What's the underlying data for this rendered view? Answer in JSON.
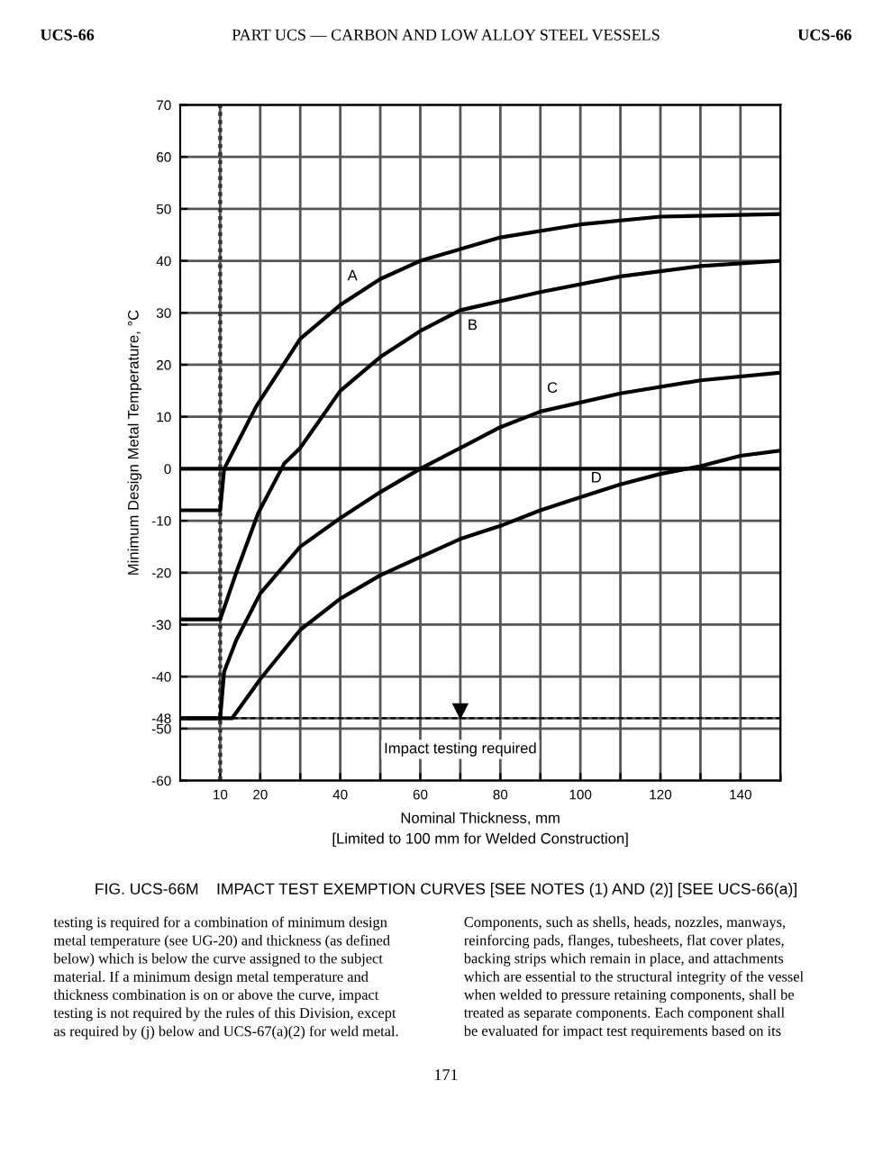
{
  "chart_data": {
    "type": "line",
    "title": "FIG. UCS-66M    IMPACT TEST EXEMPTION CURVES [SEE NOTES (1) AND (2)] [SEE UCS-66(a)]",
    "xlabel": "Nominal Thickness, mm\n[Limited to 100 mm for Welded Construction]",
    "ylabel": "Minimum Design Metal Temperature, °C",
    "xlim": [
      0,
      150
    ],
    "ylim": [
      -60,
      70
    ],
    "xticks": [
      10,
      20,
      {
        "value": 30,
        "label": null
      },
      40,
      {
        "value": 50,
        "label": null
      },
      60,
      {
        "value": 70,
        "label": null
      },
      80,
      {
        "value": 90,
        "label": null
      },
      100,
      {
        "value": 110,
        "label": null
      },
      120,
      {
        "value": 130,
        "label": null
      },
      140,
      {
        "value": 150,
        "label": null
      }
    ],
    "yticks": [
      -60,
      -50,
      -48,
      -40,
      -30,
      -20,
      -10,
      0,
      10,
      20,
      30,
      40,
      50,
      60,
      70
    ],
    "grid": true,
    "legend": false,
    "marker": "none",
    "line_style": "solid",
    "series": [
      {
        "color": "#000000",
        "x": [
          0,
          10,
          11,
          19,
          30,
          40,
          50,
          60,
          80,
          100,
          120,
          150
        ],
        "values": [
          -8,
          -8,
          0,
          12,
          25,
          31.5,
          36.5,
          40,
          44.5,
          47,
          48.5,
          49
        ]
      },
      {
        "color": "#000000",
        "x": [
          0,
          10,
          14,
          19.5,
          26,
          30,
          40,
          50,
          60,
          70,
          90,
          110,
          130,
          150
        ],
        "values": [
          -29,
          -29,
          -20,
          -8.5,
          1,
          4,
          15,
          21.5,
          26.5,
          30.5,
          34,
          37,
          39,
          40
        ]
      },
      {
        "color": "#000000",
        "x": [
          0,
          10,
          11,
          14,
          20,
          30,
          40,
          50,
          60,
          70,
          80,
          90,
          110,
          130,
          150
        ],
        "values": [
          -48,
          -48,
          -39,
          -33,
          -24,
          -15,
          -9.5,
          -4.5,
          0,
          4,
          8,
          11,
          14.5,
          17,
          18.5
        ]
      },
      {
        "color": "#000000",
        "x": [
          0,
          13,
          20,
          30,
          40,
          50,
          60,
          70,
          80,
          90,
          100,
          110,
          120,
          130,
          140,
          150
        ],
        "values": [
          -48,
          -48,
          -40.5,
          -31,
          -25,
          -20.5,
          -17,
          -13.5,
          -11,
          -8,
          -5.5,
          -3,
          -1,
          0.5,
          2.5,
          3.5
        ]
      }
    ],
    "ref_lines": [
      {
        "axis": "x",
        "value": 10,
        "line_style": "dotted",
        "color": "#333333"
      },
      {
        "axis": "y",
        "value": 0,
        "line_style": "solid",
        "color": "#000000"
      },
      {
        "axis": "y",
        "value": -48,
        "line_style": "dashed",
        "color": "#000000"
      }
    ],
    "annotations": [
      "A",
      "B",
      "C",
      "D",
      {
        "text": "Impact testing required",
        "x": 70,
        "y": -48
      },
      "UCS-66",
      "PART UCS — CARBON AND LOW ALLOY STEEL VESSELS",
      "UCS-66",
      "testing is required for a combination of minimum design\nmetal temperature (see UG-20) and thickness (as defined\nbelow) which is below the curve assigned to the subject\nmaterial. If a minimum design metal temperature and\nthickness combination is on or above the curve, impact\ntesting is not required by the rules of this Division, except\nas required by (j) below and UCS-67(a)(2) for weld metal.",
      "Components, such as shells, heads, nozzles, manways,\nreinforcing pads, flanges, tubesheets, flat cover plates,\nbacking strips which remain in place, and attachments\nwhich are essential to the structural integrity of the vessel\nwhen welded to pressure retaining components, shall be\ntreated as separate components. Each component shall\nbe evaluated for impact test requirements based on its",
      "171"
    ]
  }
}
